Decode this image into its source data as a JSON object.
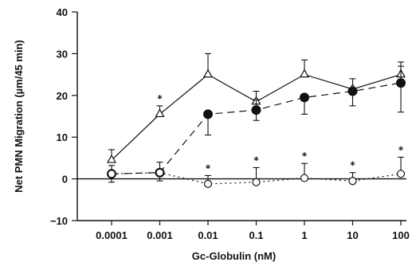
{
  "chart_data": {
    "type": "line",
    "title": "",
    "xlabel": "Gc-Globulin (nM)",
    "ylabel": "Net PMN Migration (µm/45 min)",
    "x_scale": "log",
    "categories": [
      "0.0001",
      "0.001",
      "0.01",
      "0.1",
      "1",
      "10",
      "100"
    ],
    "x": [
      0.0001,
      0.001,
      0.01,
      0.1,
      1,
      10,
      100
    ],
    "ylim": [
      -10,
      40
    ],
    "yticks": [
      -10,
      0,
      10,
      20,
      30,
      40
    ],
    "reference_line_y": 0,
    "significance_marker": "*",
    "series": [
      {
        "marker": "open-triangle",
        "line_style": "solid",
        "values": [
          4.5,
          15.5,
          25.0,
          18.5,
          25.0,
          21.5,
          25.0
        ],
        "error_upper": [
          2.5,
          2.0,
          5.0,
          2.5,
          3.5,
          2.5,
          3.0
        ],
        "significance": [
          false,
          true,
          false,
          false,
          false,
          false,
          false
        ]
      },
      {
        "marker": "filled-circle",
        "line_style": "dashed",
        "values": [
          1.2,
          1.5,
          15.5,
          16.5,
          19.5,
          21.0,
          23.0
        ],
        "error_upper": [
          2.0,
          2.5,
          0,
          2.5,
          0,
          0,
          4.0
        ],
        "error_lower": [
          2.0,
          2.0,
          5.0,
          2.5,
          4.0,
          3.5,
          7.0
        ],
        "significance": [
          false,
          false,
          false,
          false,
          false,
          false,
          false
        ]
      },
      {
        "marker": "open-circle",
        "line_style": "dotted",
        "values": [
          1.2,
          1.5,
          -1.2,
          -0.8,
          0.2,
          -0.5,
          1.2
        ],
        "error_upper": [
          0,
          0,
          2.0,
          3.5,
          3.5,
          2.0,
          4.0
        ],
        "significance": [
          false,
          false,
          true,
          true,
          true,
          true,
          true
        ]
      }
    ]
  }
}
